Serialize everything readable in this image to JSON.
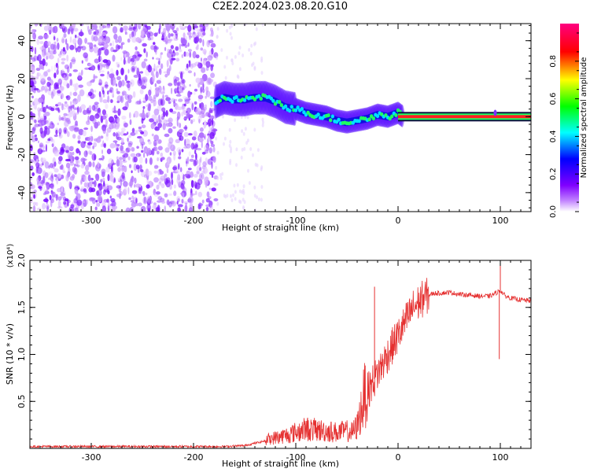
{
  "title": "C2E2.2024.023.08.20.G10",
  "chart_data": [
    {
      "type": "heatmap",
      "title": "C2E2.2024.023.08.20.G10",
      "xlabel": "Height of straight line (km)",
      "ylabel": "Frequency (Hz)",
      "xlim": [
        -360,
        130
      ],
      "ylim": [
        -50,
        49
      ],
      "x_ticks": [
        -300,
        -200,
        -100,
        0,
        100
      ],
      "y_ticks": [
        -40,
        -20,
        0,
        20,
        40
      ],
      "colorbar": {
        "label": "Normalized spectral amplitude",
        "range": [
          0.0,
          1.0
        ],
        "ticks": [
          "0.0",
          "0.2",
          "0.4",
          "0.6",
          "0.8"
        ],
        "colors": [
          "#ffffff",
          "#8000ff",
          "#0000ff",
          "#00ffff",
          "#00ff00",
          "#ffff00",
          "#ff0000",
          "#ff0080"
        ]
      },
      "ridge": {
        "description_points_x": [
          -178,
          -170,
          -160,
          -150,
          -140,
          -130,
          -120,
          -110,
          -100,
          -90,
          -80,
          -70,
          -60,
          -50,
          -40,
          -30,
          -20,
          -10,
          0,
          5,
          130
        ],
        "frequency_hz": [
          8,
          10,
          9,
          9,
          10,
          10,
          8,
          5,
          4,
          2,
          1,
          0,
          -2,
          -3,
          -2,
          -1,
          1,
          0,
          2,
          0,
          0
        ]
      },
      "noise_region_x": [
        -360,
        -178
      ]
    },
    {
      "type": "line",
      "xlabel": "Height of straight line (km)",
      "ylabel": "SNR (10 * v/v)",
      "y_multiplier": "(x10⁴)",
      "xlim": [
        -360,
        130
      ],
      "ylim": [
        0,
        2.0
      ],
      "x_ticks": [
        -300,
        -200,
        -100,
        0,
        100
      ],
      "y_ticks": [
        0.5,
        1.0,
        1.5,
        2.0
      ],
      "y_tick_labels": [
        "0.5",
        "1.0",
        "1.5",
        "2.0"
      ],
      "color": "#e53030",
      "series": [
        {
          "x": [
            -360,
            -300,
            -250,
            -200,
            -170,
            -150,
            -130,
            -110,
            -100,
            -90,
            -80,
            -70,
            -60,
            -50,
            -45,
            -40,
            -35,
            -30,
            -25,
            -20,
            -15,
            -10,
            -5,
            0,
            5,
            10,
            15,
            20,
            25,
            30,
            35,
            40,
            50,
            60,
            70,
            80,
            90,
            95,
            100,
            105,
            110,
            120,
            130
          ],
          "values": [
            0.02,
            0.02,
            0.02,
            0.02,
            0.02,
            0.03,
            0.08,
            0.12,
            0.15,
            0.18,
            0.17,
            0.16,
            0.15,
            0.16,
            0.15,
            0.2,
            0.4,
            0.6,
            0.7,
            0.8,
            0.9,
            1.0,
            1.1,
            1.2,
            1.3,
            1.4,
            1.5,
            1.55,
            1.6,
            1.63,
            1.65,
            1.65,
            1.66,
            1.64,
            1.63,
            1.62,
            1.62,
            1.65,
            1.68,
            1.62,
            1.6,
            1.58,
            1.57
          ]
        }
      ],
      "spikes": [
        {
          "x": -23,
          "value": 1.72
        },
        {
          "x": 100,
          "value": 2.0
        },
        {
          "x": 99,
          "value": 0.95
        }
      ]
    }
  ]
}
